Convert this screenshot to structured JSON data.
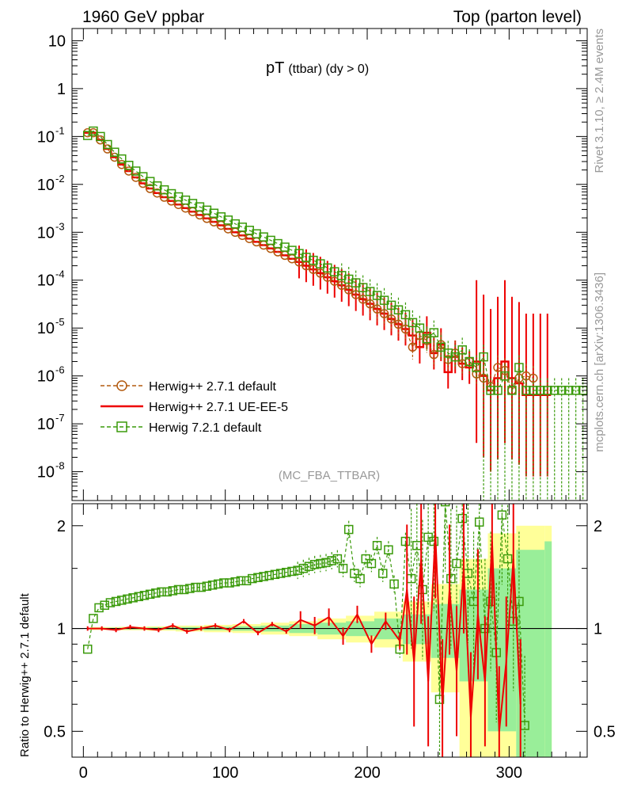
{
  "header": {
    "left": "1960 GeV ppbar",
    "right": "Top (parton level)"
  },
  "plot_title": {
    "main": "pT",
    "sub": "(ttbar) (dy > 0)"
  },
  "analysis_label": "(MC_FBA_TTBAR)",
  "side_labels": {
    "top": "Rivet 3.1.10, ≥ 2.4M events",
    "bottom": "mcplots.cern.ch [arXiv:1306.3436]"
  },
  "ratio_ylabel": "Ratio to Herwig++ 2.7.1 default",
  "colors": {
    "herwigpp_default": "#b35a0f",
    "herwigpp_ueee5": "#ee0000",
    "herwig7": "#3a9a0a",
    "band_yellow": "#ffff99",
    "band_green": "#99ee99"
  },
  "chart_data": [
    {
      "type": "line",
      "panel": "main",
      "yscale": "log",
      "xlim": [
        -8,
        355
      ],
      "ylim": [
        2.5e-09,
        18
      ],
      "y_tick_labels": [
        "10^-8",
        "10^-7",
        "10^-6",
        "10^-5",
        "10^-4",
        "10^-3",
        "10^-2",
        "10^-1",
        "1",
        "10"
      ],
      "legend": [
        "Herwig++ 2.7.1 default",
        "Herwig++ 2.7.1 UE-EE-5",
        "Herwig 7.2.1 default"
      ],
      "legend_position": "lower-left",
      "series": [
        {
          "name": "Herwig++ 2.7.1 default",
          "marker": "open-circle",
          "line": "dashed",
          "x": [
            3,
            7,
            12,
            17,
            22,
            27,
            32,
            37,
            42,
            47,
            52,
            57,
            62,
            67,
            72,
            77,
            82,
            87,
            92,
            97,
            102,
            107,
            112,
            117,
            122,
            127,
            132,
            137,
            142,
            147,
            152,
            157,
            162,
            167,
            172,
            177,
            182,
            187,
            192,
            197,
            202,
            207,
            212,
            217,
            222,
            227,
            232,
            237,
            242,
            247,
            252,
            257,
            262,
            267,
            272,
            277,
            282,
            287,
            292,
            297,
            302,
            307,
            312,
            317
          ],
          "y": [
            0.12,
            0.12,
            0.085,
            0.055,
            0.037,
            0.026,
            0.019,
            0.014,
            0.0105,
            0.0082,
            0.0066,
            0.0054,
            0.0045,
            0.0038,
            0.0032,
            0.0027,
            0.0023,
            0.00195,
            0.00165,
            0.0014,
            0.00118,
            0.001,
            0.00086,
            0.00074,
            0.00063,
            0.00054,
            0.00046,
            0.00039,
            0.00033,
            0.00028,
            0.00024,
            0.0002,
            0.000168,
            0.00014,
            0.000115,
            9.5e-05,
            7.8e-05,
            6.3e-05,
            5e-05,
            4e-05,
            3.2e-05,
            2.5e-05,
            2e-05,
            1.55e-05,
            1.2e-05,
            9.5e-06,
            4e-06,
            7e-06,
            5.5e-06,
            2.8e-06,
            4.5e-06,
            2.2e-06,
            3e-06,
            1.8e-06,
            2e-06,
            1.1e-06,
            9e-07,
            6e-07,
            1.5e-06,
            1.3e-06,
            5e-07,
            9e-07,
            1e-06,
            9e-07
          ]
        },
        {
          "name": "Herwig++ 2.7.1 UE-EE-5",
          "marker": "none",
          "line": "solid",
          "x": [
            3,
            7,
            12,
            17,
            22,
            27,
            32,
            37,
            42,
            47,
            52,
            57,
            62,
            67,
            72,
            77,
            82,
            87,
            92,
            97,
            102,
            107,
            112,
            117,
            122,
            127,
            132,
            137,
            142,
            147,
            152,
            157,
            162,
            167,
            172,
            177,
            182,
            187,
            192,
            197,
            202,
            207,
            212,
            217,
            222,
            227,
            232,
            237,
            242,
            247,
            252,
            257,
            262,
            267,
            272,
            277,
            282,
            287,
            292,
            297,
            302,
            307,
            312,
            317,
            322,
            327
          ],
          "y": [
            0.12,
            0.12,
            0.085,
            0.055,
            0.037,
            0.026,
            0.019,
            0.014,
            0.0105,
            0.0082,
            0.0066,
            0.0054,
            0.0045,
            0.0038,
            0.0032,
            0.0027,
            0.0023,
            0.00195,
            0.00165,
            0.0014,
            0.00118,
            0.001,
            0.00086,
            0.00074,
            0.00063,
            0.00054,
            0.00046,
            0.00039,
            0.00033,
            0.00028,
            0.00024,
            0.0002,
            0.000168,
            0.00014,
            0.000115,
            9.5e-05,
            7.8e-05,
            6.3e-05,
            5e-05,
            4e-05,
            3.2e-05,
            2.5e-05,
            2e-05,
            1.55e-05,
            1.2e-05,
            9.5e-06,
            7e-06,
            4e-06,
            8e-06,
            3e-06,
            4.5e-06,
            1.2e-06,
            2.5e-06,
            1.8e-06,
            1.5e-06,
            2e-06,
            1e-06,
            5e-07,
            9e-07,
            2e-06,
            9e-07,
            7e-07,
            4e-07,
            4e-07,
            4e-07,
            4e-07
          ]
        },
        {
          "name": "Herwig 7.2.1 default",
          "marker": "open-square",
          "line": "dashed",
          "x": [
            3,
            7,
            12,
            17,
            22,
            27,
            32,
            37,
            42,
            47,
            52,
            57,
            62,
            67,
            72,
            77,
            82,
            87,
            92,
            97,
            102,
            107,
            112,
            117,
            122,
            127,
            132,
            137,
            142,
            147,
            152,
            157,
            162,
            167,
            172,
            177,
            182,
            187,
            192,
            197,
            202,
            207,
            212,
            217,
            222,
            227,
            232,
            237,
            242,
            247,
            252,
            257,
            262,
            267,
            272,
            277,
            282,
            287,
            292,
            297,
            302,
            307,
            312,
            317,
            322,
            327,
            332,
            337,
            342,
            347,
            352
          ],
          "y": [
            0.105,
            0.13,
            0.1,
            0.068,
            0.047,
            0.034,
            0.025,
            0.019,
            0.0145,
            0.0115,
            0.0093,
            0.0077,
            0.0064,
            0.0055,
            0.0047,
            0.004,
            0.0034,
            0.0029,
            0.0025,
            0.0021,
            0.0018,
            0.0015,
            0.00128,
            0.0011,
            0.00093,
            0.0008,
            0.00068,
            0.00058,
            0.00049,
            0.00042,
            0.00036,
            0.0003,
            0.00026,
            0.00022,
            0.00018,
            0.00015,
            0.000125,
            0.000105,
            8.8e-05,
            7e-05,
            5.8e-05,
            4.8e-05,
            3.8e-05,
            3e-05,
            2.4e-05,
            1.9e-05,
            1.3e-05,
            1e-05,
            6e-06,
            8e-06,
            4e-06,
            3e-06,
            2.5e-06,
            3.5e-06,
            2e-06,
            1.5e-06,
            2.5e-06,
            5e-07,
            5e-07,
            1e-06,
            5e-07,
            1.5e-06,
            5e-07,
            5e-07,
            5e-07,
            5e-07,
            5e-07,
            5e-07,
            5e-07,
            5e-07,
            5e-07
          ]
        }
      ]
    },
    {
      "type": "line",
      "panel": "ratio",
      "ylabel": "Ratio to Herwig++ 2.7.1 default",
      "yscale": "log",
      "xlim": [
        -8,
        355
      ],
      "ylim": [
        0.42,
        2.32
      ],
      "x_ticks": [
        0,
        100,
        200,
        300
      ],
      "y_ticks": [
        0.5,
        1,
        2
      ],
      "uncertainty_bands": {
        "x": [
          5,
          25,
          45,
          65,
          85,
          105,
          125,
          145,
          165,
          185,
          205,
          225,
          245,
          265,
          285,
          305,
          325
        ],
        "yellow_halfwidth": [
          0.01,
          0.012,
          0.015,
          0.02,
          0.025,
          0.03,
          0.04,
          0.05,
          0.07,
          0.09,
          0.12,
          0.2,
          0.35,
          0.6,
          0.9,
          1.0,
          1.0
        ],
        "green_halfwidth": [
          0.005,
          0.006,
          0.008,
          0.01,
          0.012,
          0.015,
          0.02,
          0.03,
          0.04,
          0.05,
          0.07,
          0.1,
          0.18,
          0.3,
          0.5,
          0.7,
          0.8
        ]
      },
      "series": [
        {
          "name": "Herwig++ 2.7.1 UE-EE-5",
          "x": [
            3,
            13,
            23,
            33,
            43,
            53,
            63,
            73,
            83,
            93,
            103,
            113,
            123,
            133,
            143,
            153,
            163,
            173,
            183,
            193,
            203,
            213,
            223,
            228,
            233,
            238,
            243,
            248,
            253,
            258,
            263,
            268,
            273,
            278,
            283,
            288,
            293,
            298,
            303,
            308
          ],
          "y": [
            1.0,
            1.0,
            0.99,
            1.01,
            1.0,
            0.99,
            1.02,
            0.98,
            1.0,
            1.02,
            0.99,
            1.05,
            0.97,
            1.03,
            0.98,
            1.06,
            1.02,
            1.08,
            0.95,
            1.1,
            0.9,
            1.05,
            0.92,
            1.3,
            0.8,
            1.6,
            0.7,
            1.9,
            0.6,
            1.3,
            0.75,
            1.5,
            0.55,
            1.1,
            0.7,
            1.8,
            0.5,
            0.8,
            1.6,
            0.6
          ]
        },
        {
          "name": "Herwig 7.2.1 default",
          "x": [
            3,
            7,
            11,
            15,
            19,
            23,
            27,
            31,
            35,
            39,
            43,
            47,
            51,
            55,
            59,
            63,
            67,
            71,
            75,
            79,
            83,
            87,
            91,
            95,
            99,
            103,
            107,
            111,
            115,
            119,
            123,
            127,
            131,
            135,
            139,
            143,
            147,
            151,
            155,
            159,
            163,
            167,
            171,
            175,
            179,
            183,
            187,
            191,
            195,
            199,
            203,
            207,
            211,
            215,
            219,
            223,
            227,
            231,
            235,
            239,
            243,
            247,
            251,
            255,
            259,
            263,
            267,
            271,
            275,
            279,
            283,
            287,
            291,
            295,
            299,
            303,
            307,
            311
          ],
          "y": [
            0.87,
            1.07,
            1.15,
            1.17,
            1.19,
            1.2,
            1.21,
            1.22,
            1.23,
            1.24,
            1.25,
            1.26,
            1.27,
            1.28,
            1.28,
            1.29,
            1.3,
            1.3,
            1.31,
            1.32,
            1.32,
            1.33,
            1.34,
            1.35,
            1.36,
            1.36,
            1.37,
            1.38,
            1.38,
            1.4,
            1.41,
            1.42,
            1.43,
            1.44,
            1.45,
            1.46,
            1.47,
            1.48,
            1.5,
            1.52,
            1.54,
            1.55,
            1.56,
            1.58,
            1.6,
            1.5,
            1.95,
            1.45,
            1.4,
            1.6,
            1.55,
            1.75,
            1.45,
            1.7,
            1.35,
            0.87,
            1.8,
            1.4,
            1.75,
            1.3,
            1.85,
            1.8,
            0.62,
            2.35,
            1.4,
            1.55,
            2.1,
            1.45,
            1.2,
            2.05,
            1.0,
            1.2,
            0.85,
            2.15,
            1.6,
            1.05,
            1.2,
            0.52
          ]
        }
      ]
    }
  ]
}
